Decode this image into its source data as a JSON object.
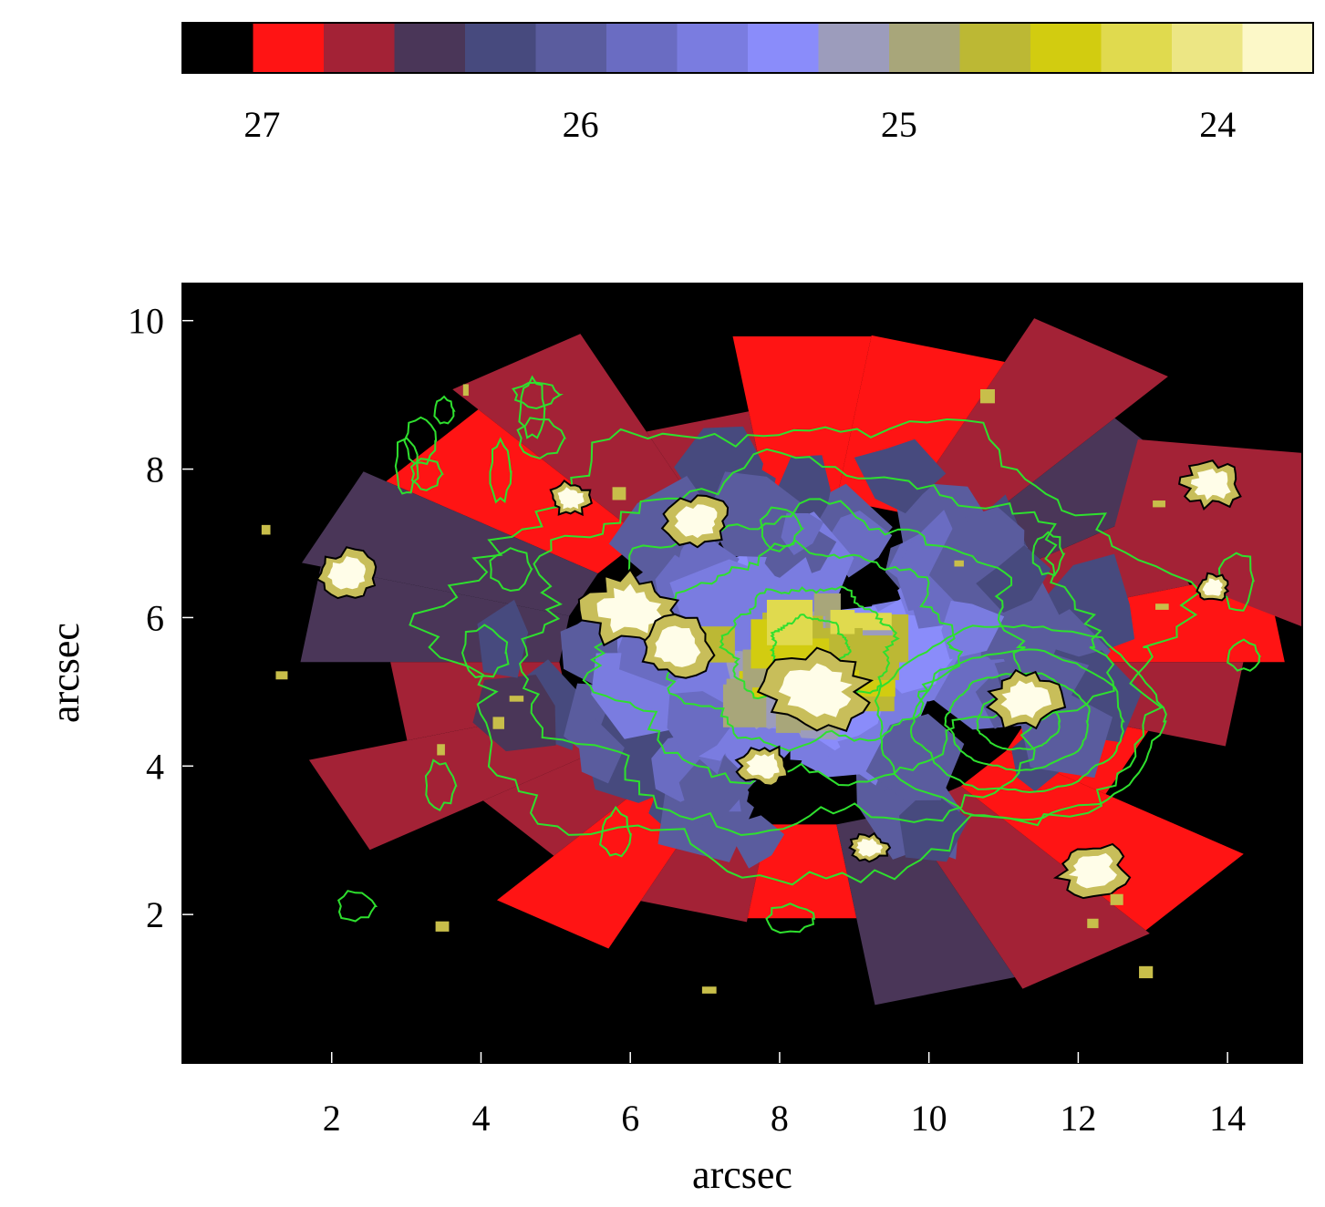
{
  "chart_data": {
    "type": "heatmap",
    "colorbar": {
      "colors": [
        "#000000",
        "#ff1414",
        "#a32236",
        "#4a3658",
        "#474a7e",
        "#5a5c9e",
        "#6a6cc2",
        "#7a7ce0",
        "#8a8cfa",
        "#9c9cbc",
        "#a8a67a",
        "#bcb834",
        "#d2cc10",
        "#e0da4e",
        "#ece684",
        "#fcf8c8"
      ],
      "ticks": [
        {
          "value": 27,
          "label": "27"
        },
        {
          "value": 26,
          "label": "26"
        },
        {
          "value": 25,
          "label": "25"
        },
        {
          "value": 24,
          "label": "24"
        }
      ],
      "range": [
        27.25,
        23.7
      ]
    },
    "xlabel": "arcsec",
    "ylabel": "arcsec",
    "xlim": [
      0,
      15
    ],
    "ylim": [
      0,
      10.5
    ],
    "x_ticks": [
      "2",
      "4",
      "6",
      "8",
      "10",
      "12",
      "14"
    ],
    "y_ticks": [
      "2",
      "4",
      "6",
      "8",
      "10"
    ],
    "background": "#000000",
    "contour_color": "#2ee02e",
    "contour_centers": [
      {
        "x": 8.4,
        "y": 5.6
      },
      {
        "x": 11.2,
        "y": 4.6
      }
    ],
    "bright_knots": [
      {
        "x": 8.5,
        "y": 5.0,
        "size": 0.6
      },
      {
        "x": 6.0,
        "y": 6.1,
        "size": 0.55
      },
      {
        "x": 6.6,
        "y": 5.6,
        "size": 0.45
      },
      {
        "x": 6.9,
        "y": 7.3,
        "size": 0.4
      },
      {
        "x": 2.2,
        "y": 6.6,
        "size": 0.35
      },
      {
        "x": 11.3,
        "y": 4.9,
        "size": 0.45
      },
      {
        "x": 12.2,
        "y": 2.6,
        "size": 0.4
      },
      {
        "x": 13.8,
        "y": 7.8,
        "size": 0.35
      },
      {
        "x": 5.2,
        "y": 7.6,
        "size": 0.25
      },
      {
        "x": 13.8,
        "y": 6.4,
        "size": 0.2
      },
      {
        "x": 7.8,
        "y": 4.0,
        "size": 0.3
      },
      {
        "x": 9.2,
        "y": 2.9,
        "size": 0.22
      }
    ]
  }
}
